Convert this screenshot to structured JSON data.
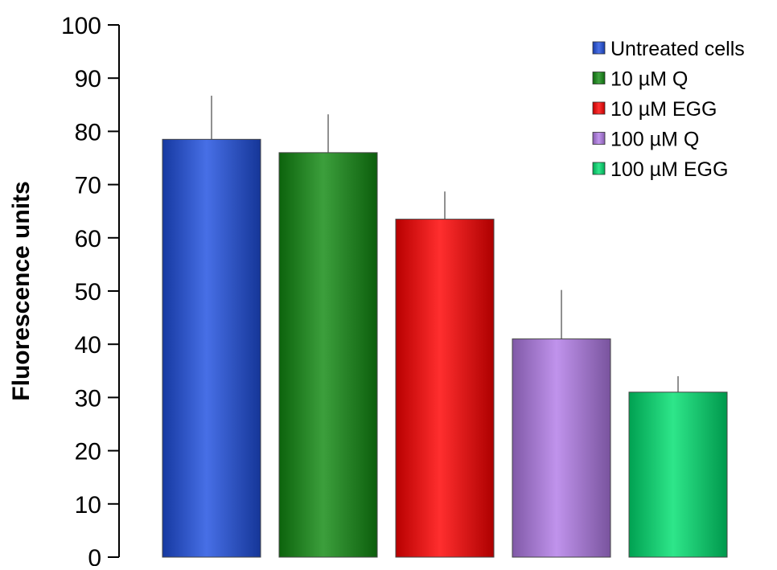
{
  "chart_data": {
    "type": "bar",
    "title": "",
    "xlabel": "",
    "ylabel": "Fluorescence units",
    "ylim": [
      0,
      100
    ],
    "yticks": [
      0,
      10,
      20,
      30,
      40,
      50,
      60,
      70,
      80,
      90,
      100
    ],
    "grid": false,
    "legend_position": "top-right",
    "series": [
      {
        "name": "Untreated cells",
        "value": 78.5,
        "error": 8.2,
        "color": "#1f4fe0"
      },
      {
        "name": "10 µM Q",
        "value": 76,
        "error": 7.2,
        "color": "#118a11"
      },
      {
        "name": "10 µM EGG",
        "value": 63.5,
        "error": 5.2,
        "color": "#ff0000"
      },
      {
        "name": "100 µM Q",
        "value": 41,
        "error": 9.2,
        "color": "#b27be8"
      },
      {
        "name": "100 µM EGG",
        "value": 31,
        "error": 3.0,
        "color": "#00e070"
      }
    ]
  }
}
